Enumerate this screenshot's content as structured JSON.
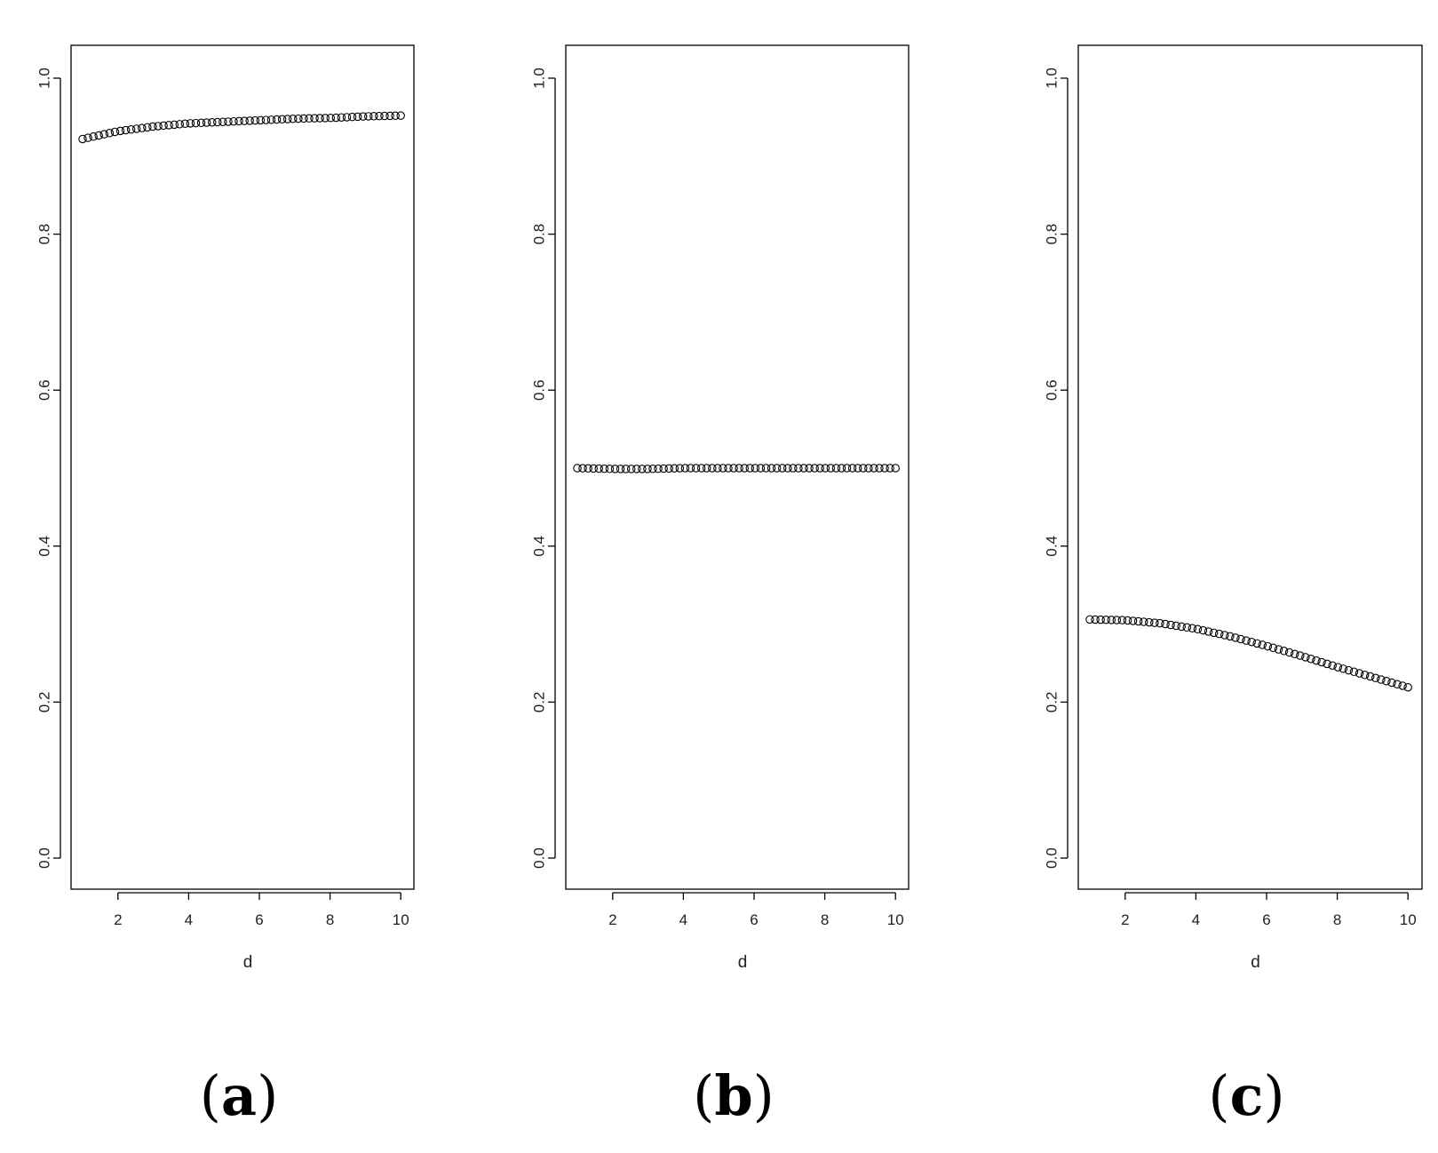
{
  "chart_data": [
    {
      "type": "scatter",
      "panel_label": "a",
      "xlabel": "d",
      "ylabel": "",
      "xlim": [
        1,
        10
      ],
      "ylim": [
        0,
        1
      ],
      "xticks": [
        2,
        4,
        6,
        8,
        10
      ],
      "yticks": [
        "0.0",
        "0.2",
        "0.4",
        "0.6",
        "0.8",
        "1.0"
      ],
      "curve": {
        "x_start": 1.0,
        "x_end": 10.0,
        "n_points": 60,
        "y_anchor_x": [
          1,
          2,
          3,
          4,
          5,
          6,
          7,
          8,
          9,
          10
        ],
        "y_anchor_y": [
          0.922,
          0.932,
          0.938,
          0.942,
          0.944,
          0.946,
          0.948,
          0.949,
          0.951,
          0.952
        ]
      }
    },
    {
      "type": "scatter",
      "panel_label": "b",
      "xlabel": "d",
      "ylabel": "",
      "xlim": [
        1,
        10
      ],
      "ylim": [
        0,
        1
      ],
      "xticks": [
        2,
        4,
        6,
        8,
        10
      ],
      "yticks": [
        "0.0",
        "0.2",
        "0.4",
        "0.6",
        "0.8",
        "1.0"
      ],
      "curve": {
        "x_start": 1.0,
        "x_end": 10.0,
        "n_points": 60,
        "y_anchor_x": [
          1,
          2,
          3,
          4,
          5,
          6,
          7,
          8,
          9,
          10
        ],
        "y_anchor_y": [
          0.5,
          0.499,
          0.499,
          0.5,
          0.5,
          0.5,
          0.5,
          0.5,
          0.5,
          0.5
        ]
      }
    },
    {
      "type": "scatter",
      "panel_label": "c",
      "xlabel": "d",
      "ylabel": "",
      "xlim": [
        1,
        10
      ],
      "ylim": [
        0,
        1
      ],
      "xticks": [
        2,
        4,
        6,
        8,
        10
      ],
      "yticks": [
        "0.0",
        "0.2",
        "0.4",
        "0.6",
        "0.8",
        "1.0"
      ],
      "curve": {
        "x_start": 1.0,
        "x_end": 10.0,
        "n_points": 60,
        "y_anchor_x": [
          1,
          2,
          3,
          4,
          5,
          6,
          7,
          8,
          9,
          10
        ],
        "y_anchor_y": [
          0.306,
          0.305,
          0.301,
          0.294,
          0.284,
          0.272,
          0.259,
          0.245,
          0.232,
          0.219
        ]
      }
    }
  ]
}
